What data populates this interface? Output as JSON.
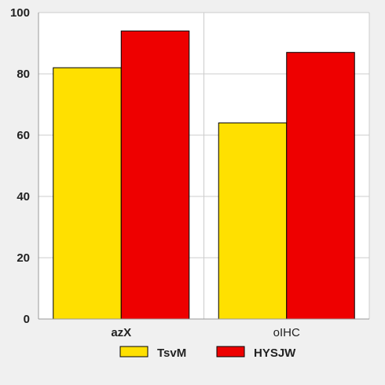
{
  "chart_data": {
    "type": "bar",
    "title": "",
    "xlabel": "",
    "ylabel": "",
    "categories": [
      "azX",
      "oIHC"
    ],
    "series": [
      {
        "name": "TsvM",
        "values": [
          82,
          64
        ],
        "color": "#ffe000"
      },
      {
        "name": "HYSJW",
        "values": [
          94,
          87
        ],
        "color": "#ee0000"
      }
    ],
    "ylim": [
      0,
      100
    ],
    "yticks": [
      0,
      20,
      40,
      60,
      80,
      100
    ],
    "grid": true,
    "legend_position": "bottom",
    "colors": {
      "background": "#f0f0f0",
      "plot_background": "#ffffff",
      "grid": "#cccccc"
    }
  }
}
